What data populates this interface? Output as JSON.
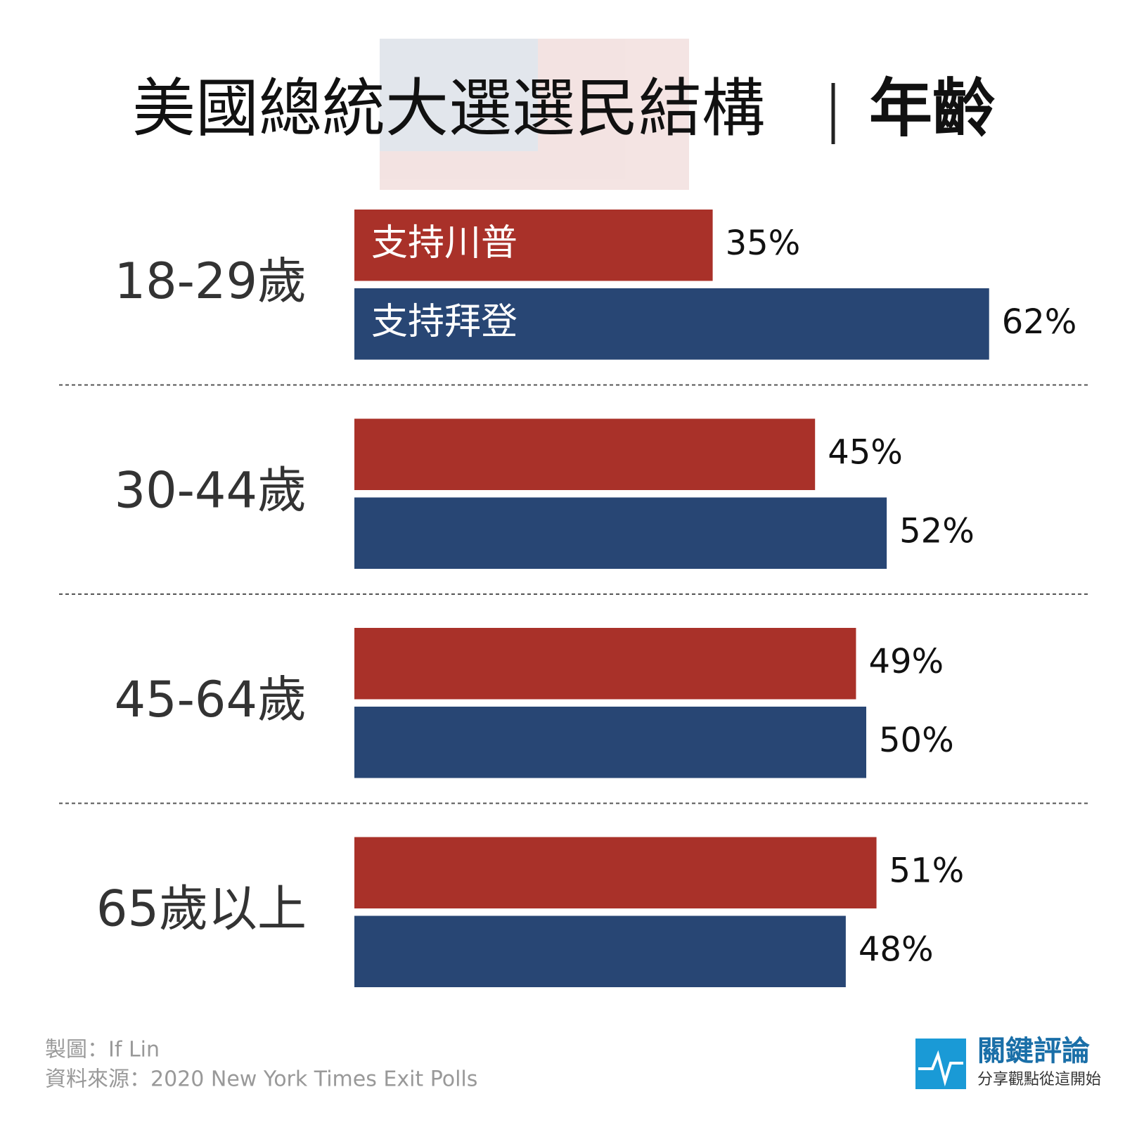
{
  "chart_data": {
    "type": "grouped-hbar",
    "title": "美國總統大選選民結構",
    "title_highlight": "年齡",
    "categories": [
      "18-29歲",
      "30-44歲",
      "45-64歲",
      "65歲以上"
    ],
    "series": [
      {
        "name": "支持川普",
        "color": "#a93129",
        "values": [
          35,
          45,
          49,
          51
        ],
        "value_labels": [
          "35%",
          "45%",
          "49%",
          "51%"
        ]
      },
      {
        "name": "支持拜登",
        "color": "#284674",
        "values": [
          62,
          52,
          50,
          48
        ],
        "value_labels": [
          "62%",
          "52%",
          "50%",
          "48%"
        ]
      }
    ],
    "credit": "製圖：If Lin",
    "source": "資料來源：2020 New York Times Exit Polls"
  },
  "logo": {
    "name": "關鍵評論",
    "slogan": "分享觀點從這開始"
  }
}
